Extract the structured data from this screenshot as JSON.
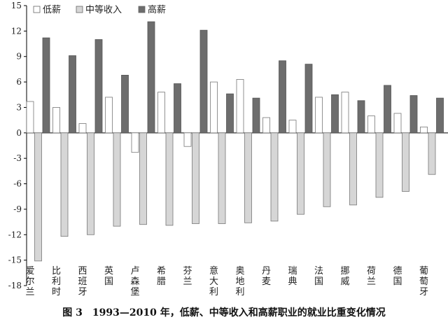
{
  "caption": "图 3　1993—2010 年，低薪、中等收入和高薪职业的就业比重变化情况",
  "chart_data": {
    "type": "bar",
    "categories": [
      "爱尔兰",
      "比利时",
      "西班牙",
      "英国",
      "卢森堡",
      "希腊",
      "芬兰",
      "意大利",
      "奥地利",
      "丹麦",
      "瑞典",
      "法国",
      "挪威",
      "荷兰",
      "德国",
      "葡萄牙"
    ],
    "series": [
      {
        "name": "低薪",
        "color": "#ffffff",
        "values": [
          3.7,
          3.0,
          1.1,
          4.2,
          -2.3,
          4.8,
          -1.6,
          6.0,
          6.3,
          1.8,
          1.5,
          4.2,
          4.8,
          2.0,
          2.3,
          0.7
        ]
      },
      {
        "name": "中等收入",
        "color": "#d6d6d6",
        "values": [
          -15.1,
          -12.2,
          -12.0,
          -11.0,
          -10.8,
          -10.9,
          -10.7,
          -10.7,
          -10.6,
          -10.4,
          -9.6,
          -8.7,
          -8.5,
          -7.6,
          -6.9,
          -4.9
        ]
      },
      {
        "name": "高薪",
        "color": "#6d6d6d",
        "values": [
          11.2,
          9.1,
          11.0,
          6.8,
          13.1,
          5.8,
          12.1,
          4.6,
          4.1,
          8.5,
          8.1,
          4.5,
          3.8,
          5.6,
          4.4,
          4.1
        ]
      }
    ],
    "ylim": [
      -18,
      15
    ],
    "yticks": [
      -18,
      -15,
      -12,
      -9,
      -6,
      -3,
      0,
      3,
      6,
      9,
      12,
      15
    ],
    "legend_position": "top-left",
    "grid": false
  }
}
